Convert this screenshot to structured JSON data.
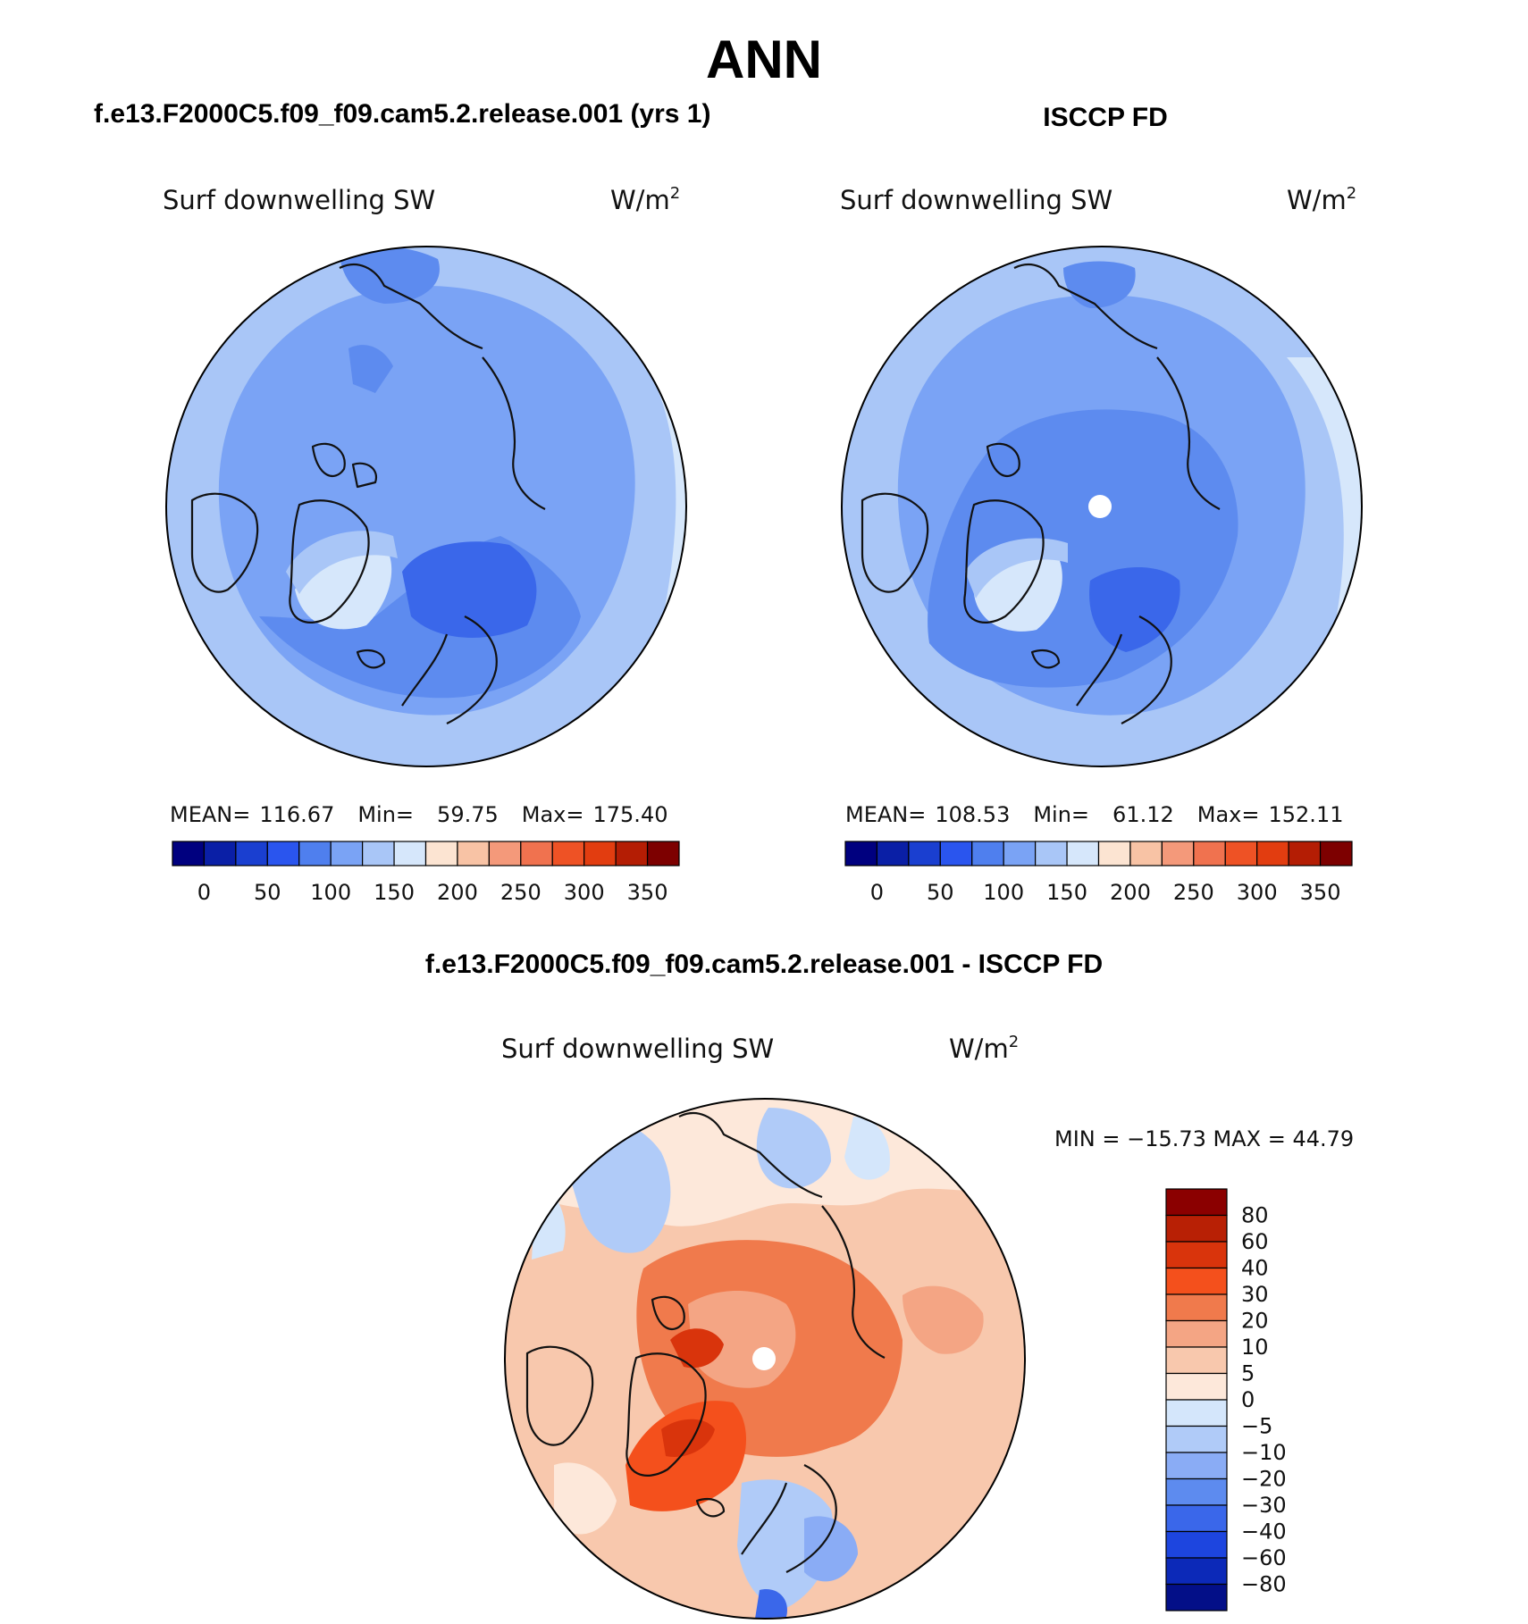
{
  "title": "ANN",
  "panels": [
    {
      "subtitle": "f.e13.F2000C5.f09_f09.cam5.2.release.001 (yrs 1)",
      "variable": "Surf downwelling SW",
      "units": "W/m",
      "units_sup": "2",
      "stats": {
        "mean_label": "MEAN=",
        "mean": "116.67",
        "min_label": "Min=",
        "min": "59.75",
        "max_label": "Max=",
        "max": "175.40"
      }
    },
    {
      "subtitle": "ISCCP FD",
      "variable": "Surf downwelling SW",
      "units": "W/m",
      "units_sup": "2",
      "stats": {
        "mean_label": "MEAN=",
        "mean": "108.53",
        "min_label": "Min=",
        "min": "61.12",
        "max_label": "Max=",
        "max": "152.11"
      }
    }
  ],
  "abs_colorbar": {
    "ticks": [
      "0",
      "50",
      "100",
      "150",
      "200",
      "250",
      "300",
      "350"
    ],
    "colors": [
      "#00007f",
      "#0a1fa6",
      "#1a3fd0",
      "#2a55ee",
      "#4f7fee",
      "#7aa3f5",
      "#a9c6f7",
      "#d6e7fb",
      "#fce4d2",
      "#f8c3a5",
      "#f4997a",
      "#f0724f",
      "#ee5225",
      "#e23d10",
      "#b41d04",
      "#7d0000"
    ]
  },
  "diff_panel": {
    "subtitle": "f.e13.F2000C5.f09_f09.cam5.2.release.001 - ISCCP FD",
    "variable": "Surf downwelling SW",
    "units": "W/m",
    "units_sup": "2",
    "minmax_text": "MIN = −15.73  MAX =   44.79"
  },
  "diff_colorbar": {
    "labels": [
      "80",
      "60",
      "40",
      "30",
      "20",
      "10",
      "5",
      "0",
      "−5",
      "−10",
      "−20",
      "−30",
      "−40",
      "−60",
      "−80"
    ],
    "colors_top_to_bottom": [
      "#8b0000",
      "#b82005",
      "#d9340c",
      "#f4501c",
      "#f07a4c",
      "#f4a584",
      "#f8c8ad",
      "#fde8da",
      "#d4e6fb",
      "#b0cbf8",
      "#8aacf5",
      "#5d8bef",
      "#3a67ea",
      "#1d45df",
      "#0c29b8",
      "#030f88"
    ]
  }
}
